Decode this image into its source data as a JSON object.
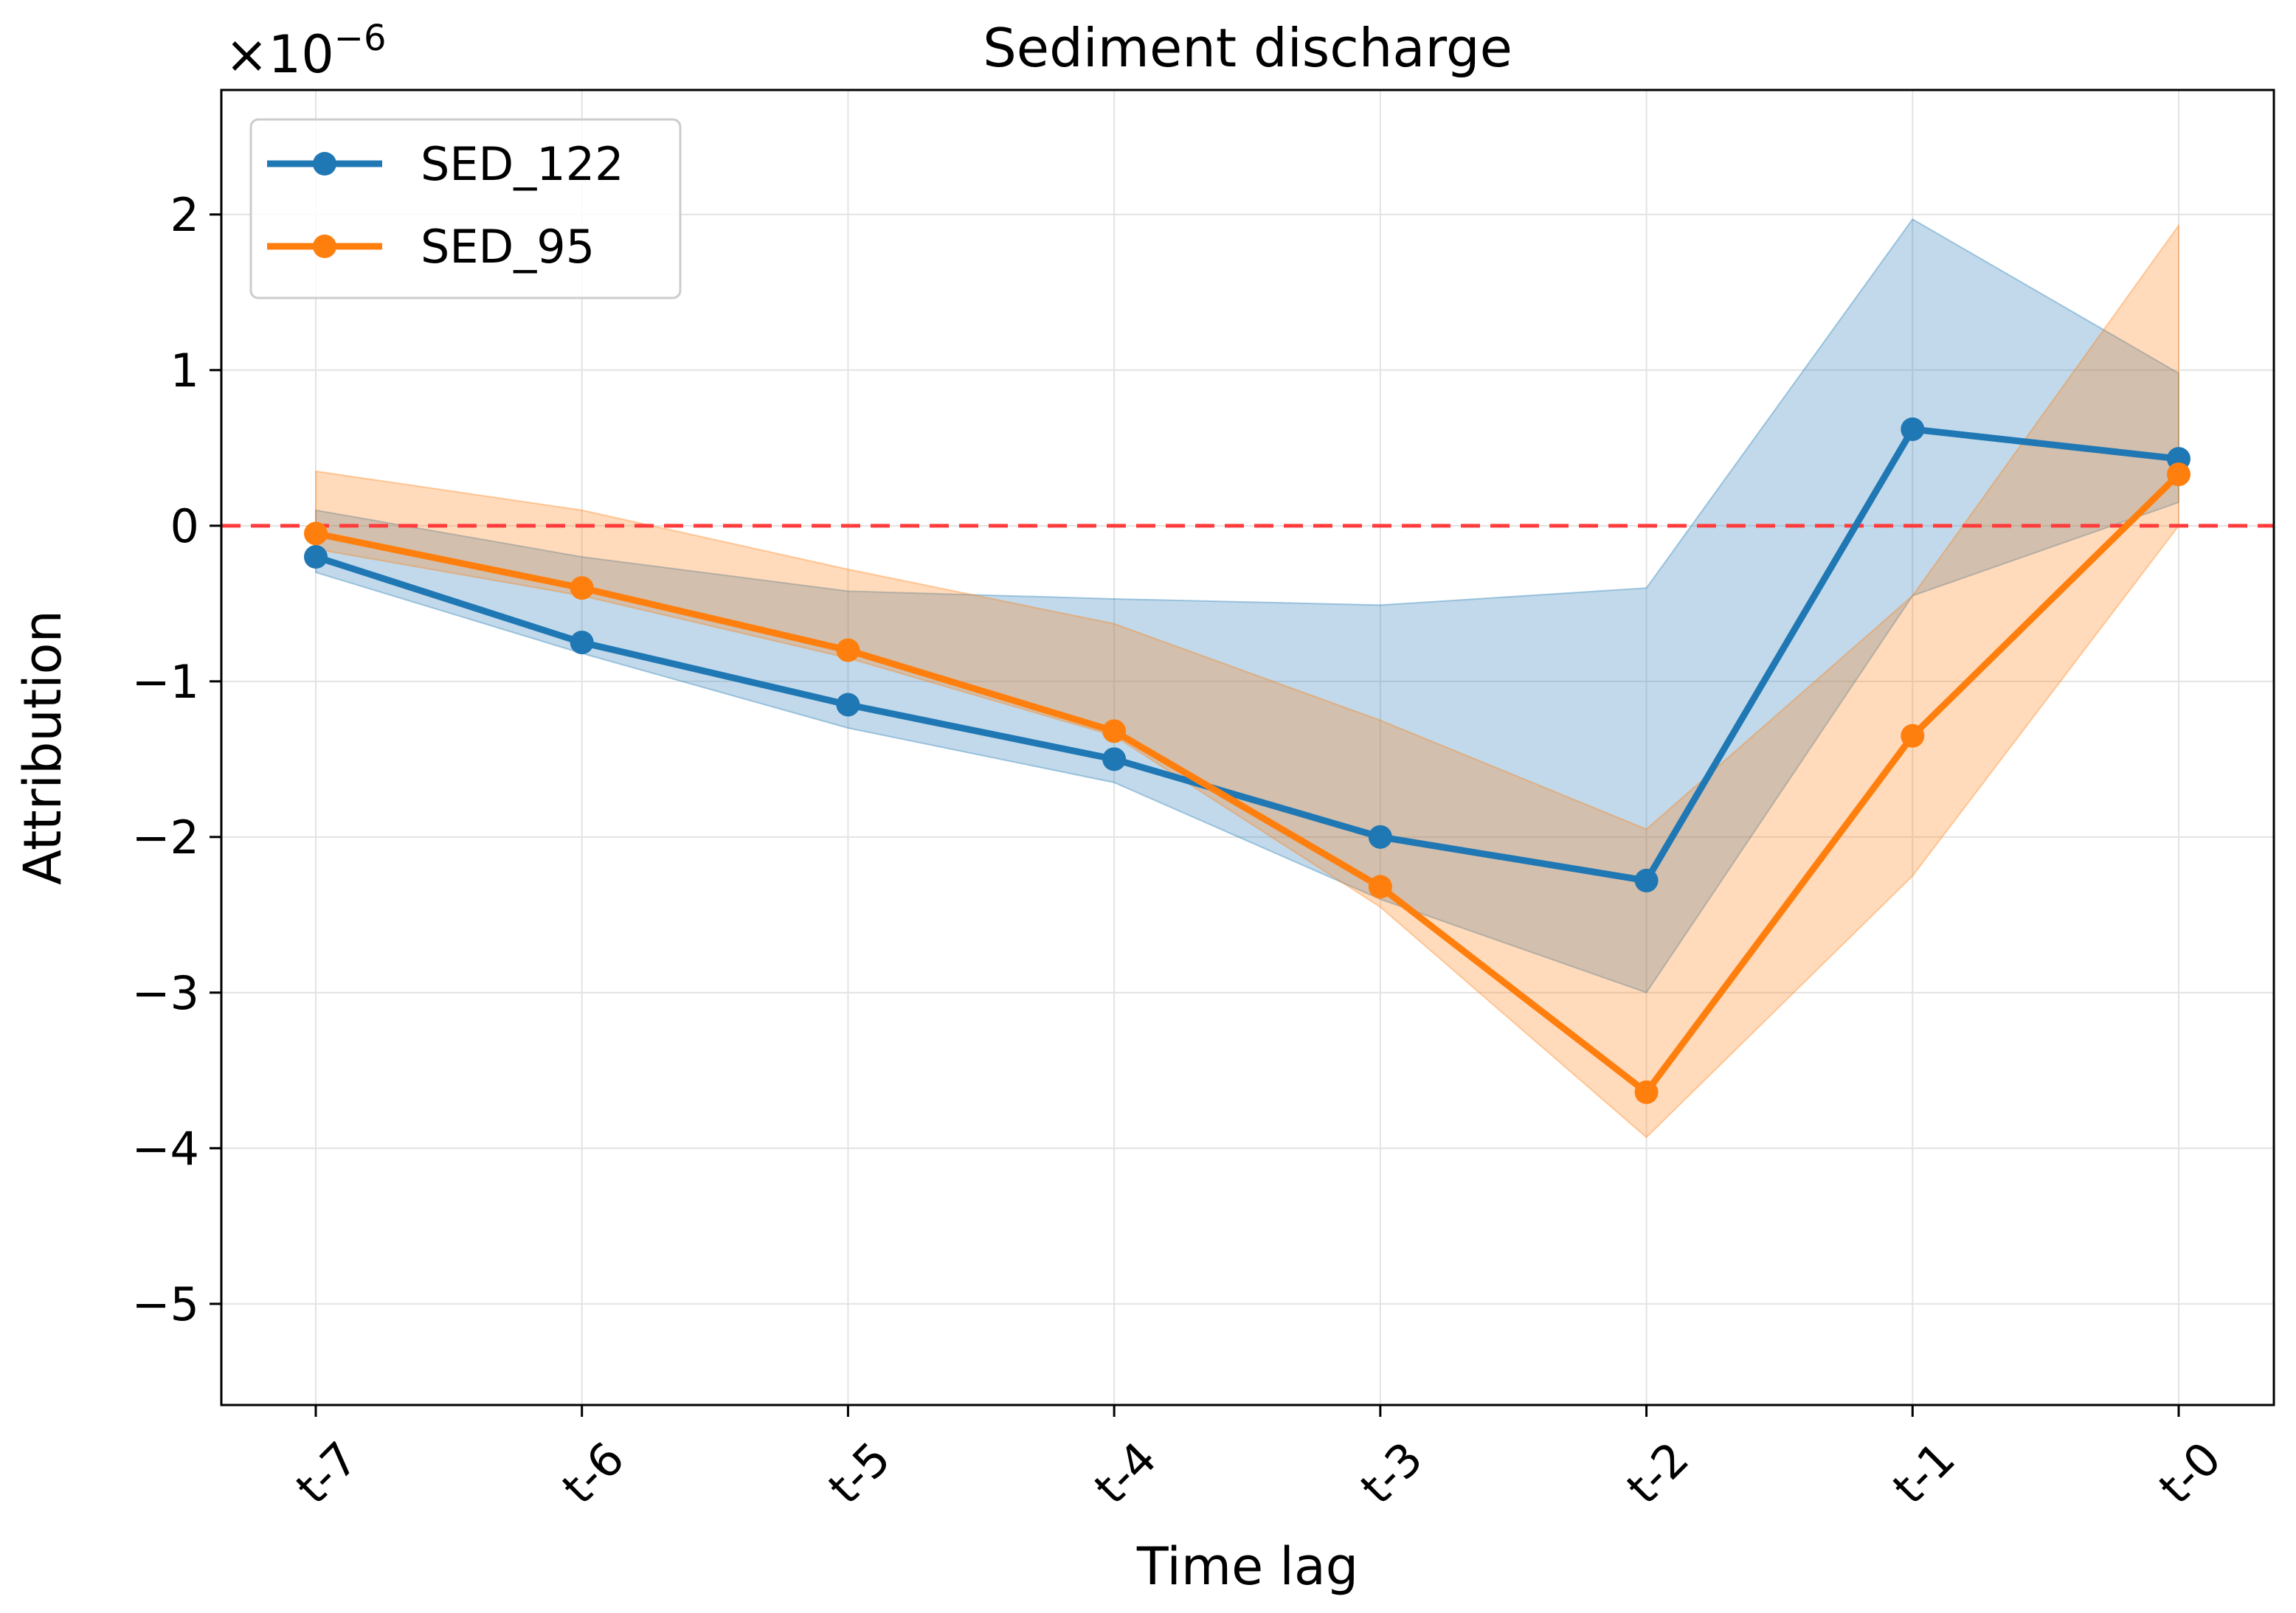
{
  "chart_data": {
    "type": "line",
    "title": "Sediment discharge",
    "xlabel": "Time lag",
    "ylabel": "Attribution",
    "y_scale_label": "×10",
    "y_scale_exponent": "−6",
    "categories": [
      "t-7",
      "t-6",
      "t-5",
      "t-4",
      "t-3",
      "t-2",
      "t-1",
      "t-0"
    ],
    "ylim": [
      -5.65,
      2.8
    ],
    "yticks": [
      2,
      1,
      0,
      -1,
      -2,
      -3,
      -4,
      -5
    ],
    "ytick_labels": [
      "2",
      "1",
      "0",
      "−1",
      "−2",
      "−3",
      "−4",
      "−5"
    ],
    "grid": true,
    "legend_position": "top-left",
    "reference_line": {
      "y": 0,
      "color": "#ff3b3b",
      "style": "dashed"
    },
    "series": [
      {
        "name": "SED_122",
        "color": "#1f77b4",
        "values": [
          -0.2,
          -0.75,
          -1.15,
          -1.5,
          -2.0,
          -2.28,
          0.62,
          0.43
        ],
        "upper": [
          0.1,
          -0.2,
          -0.42,
          -0.47,
          -0.51,
          -0.4,
          1.97,
          0.98
        ],
        "lower": [
          -0.3,
          -0.82,
          -1.3,
          -1.65,
          -2.4,
          -3.0,
          -0.45,
          0.15
        ]
      },
      {
        "name": "SED_95",
        "color": "#ff7f0e",
        "values": [
          -0.05,
          -0.4,
          -0.8,
          -1.32,
          -2.32,
          -3.64,
          -1.35,
          0.33
        ],
        "upper": [
          0.35,
          0.1,
          -0.28,
          -0.63,
          -1.25,
          -1.95,
          -0.45,
          1.93
        ],
        "lower": [
          -0.15,
          -0.45,
          -0.85,
          -1.35,
          -2.45,
          -3.93,
          -2.25,
          0.0
        ]
      }
    ]
  }
}
